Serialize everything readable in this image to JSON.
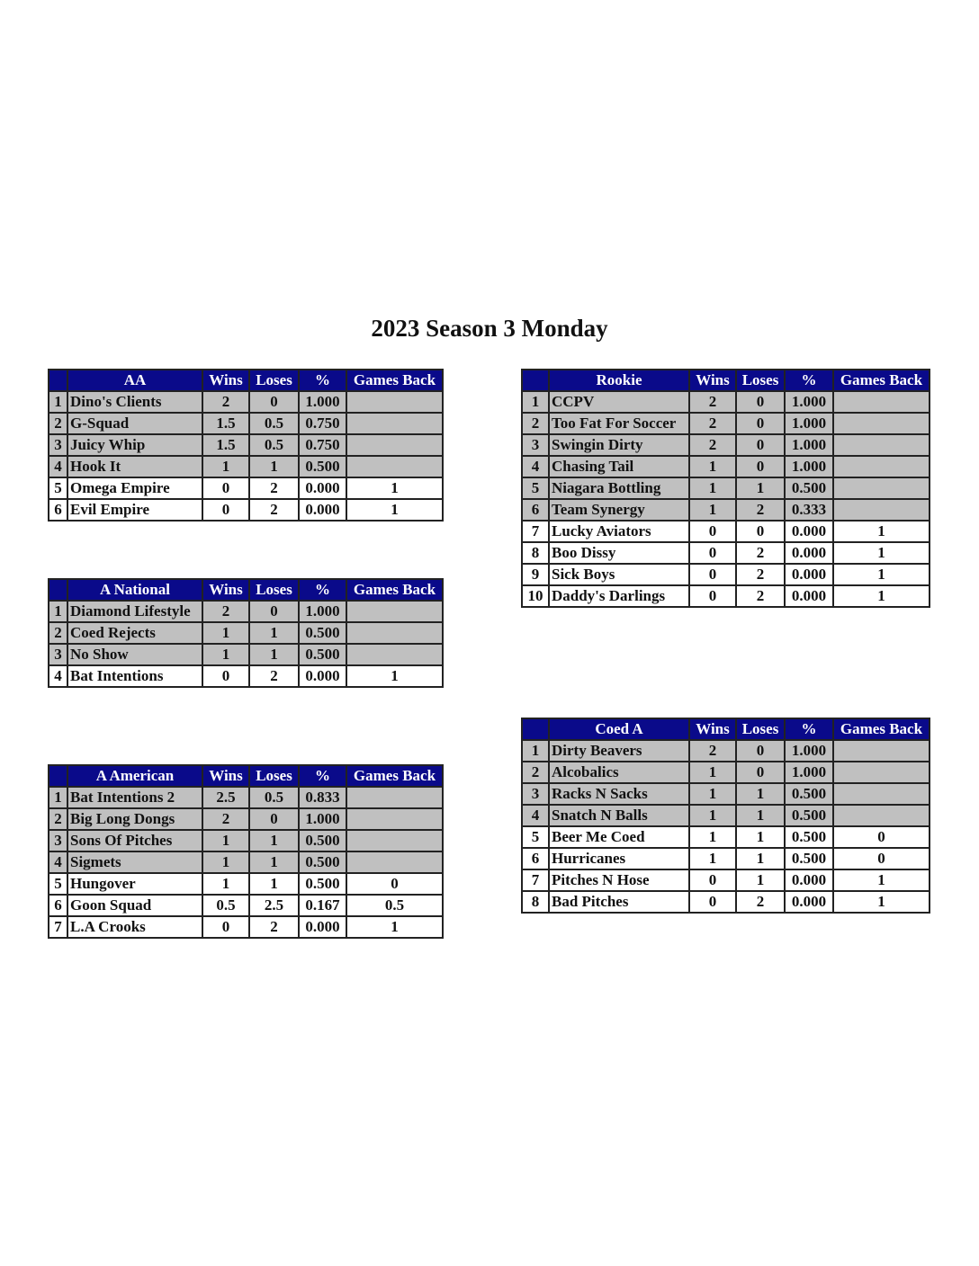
{
  "title": "2023 Season 3 Monday",
  "colors": {
    "header": "#0a0a8a",
    "qualified_row": "#c0c0c0",
    "other_row": "#ffffff"
  },
  "columns": [
    "Wins",
    "Loses",
    "%",
    "Games Back"
  ],
  "divisions": [
    {
      "id": "aa",
      "name": "AA",
      "rows": [
        {
          "rank": "1",
          "team": "Dino's Clients",
          "wins": "2",
          "loses": "0",
          "pct": "1.000",
          "gb": "",
          "shaded": true
        },
        {
          "rank": "2",
          "team": "G-Squad",
          "wins": "1.5",
          "loses": "0.5",
          "pct": "0.750",
          "gb": "",
          "shaded": true
        },
        {
          "rank": "3",
          "team": "Juicy Whip",
          "wins": "1.5",
          "loses": "0.5",
          "pct": "0.750",
          "gb": "",
          "shaded": true
        },
        {
          "rank": "4",
          "team": "Hook It",
          "wins": "1",
          "loses": "1",
          "pct": "0.500",
          "gb": "",
          "shaded": true
        },
        {
          "rank": "5",
          "team": "Omega Empire",
          "wins": "0",
          "loses": "2",
          "pct": "0.000",
          "gb": "1",
          "shaded": false
        },
        {
          "rank": "6",
          "team": "Evil Empire",
          "wins": "0",
          "loses": "2",
          "pct": "0.000",
          "gb": "1",
          "shaded": false
        }
      ]
    },
    {
      "id": "a-national",
      "name": "A National",
      "rows": [
        {
          "rank": "1",
          "team": "Diamond Lifestyle",
          "wins": "2",
          "loses": "0",
          "pct": "1.000",
          "gb": "",
          "shaded": true
        },
        {
          "rank": "2",
          "team": "Coed Rejects",
          "wins": "1",
          "loses": "1",
          "pct": "0.500",
          "gb": "",
          "shaded": true
        },
        {
          "rank": "3",
          "team": "No Show",
          "wins": "1",
          "loses": "1",
          "pct": "0.500",
          "gb": "",
          "shaded": true
        },
        {
          "rank": "4",
          "team": "Bat Intentions",
          "wins": "0",
          "loses": "2",
          "pct": "0.000",
          "gb": "1",
          "shaded": false
        }
      ]
    },
    {
      "id": "a-american",
      "name": "A American",
      "rows": [
        {
          "rank": "1",
          "team": "Bat Intentions 2",
          "wins": "2.5",
          "loses": "0.5",
          "pct": "0.833",
          "gb": "",
          "shaded": true
        },
        {
          "rank": "2",
          "team": "Big Long Dongs",
          "wins": "2",
          "loses": "0",
          "pct": "1.000",
          "gb": "",
          "shaded": true
        },
        {
          "rank": "3",
          "team": "Sons Of Pitches",
          "wins": "1",
          "loses": "1",
          "pct": "0.500",
          "gb": "",
          "shaded": true
        },
        {
          "rank": "4",
          "team": "Sigmets",
          "wins": "1",
          "loses": "1",
          "pct": "0.500",
          "gb": "",
          "shaded": true
        },
        {
          "rank": "5",
          "team": "Hungover",
          "wins": "1",
          "loses": "1",
          "pct": "0.500",
          "gb": "0",
          "shaded": false
        },
        {
          "rank": "6",
          "team": "Goon Squad",
          "wins": "0.5",
          "loses": "2.5",
          "pct": "0.167",
          "gb": "0.5",
          "shaded": false
        },
        {
          "rank": "7",
          "team": "L.A Crooks",
          "wins": "0",
          "loses": "2",
          "pct": "0.000",
          "gb": "1",
          "shaded": false
        }
      ]
    },
    {
      "id": "rookie",
      "name": "Rookie",
      "rows": [
        {
          "rank": "1",
          "team": "CCPV",
          "wins": "2",
          "loses": "0",
          "pct": "1.000",
          "gb": "",
          "shaded": true
        },
        {
          "rank": "2",
          "team": "Too Fat For Soccer",
          "wins": "2",
          "loses": "0",
          "pct": "1.000",
          "gb": "",
          "shaded": true
        },
        {
          "rank": "3",
          "team": "Swingin Dirty",
          "wins": "2",
          "loses": "0",
          "pct": "1.000",
          "gb": "",
          "shaded": true
        },
        {
          "rank": "4",
          "team": "Chasing Tail",
          "wins": "1",
          "loses": "0",
          "pct": "1.000",
          "gb": "",
          "shaded": true
        },
        {
          "rank": "5",
          "team": "Niagara Bottling",
          "wins": "1",
          "loses": "1",
          "pct": "0.500",
          "gb": "",
          "shaded": true
        },
        {
          "rank": "6",
          "team": "Team Synergy",
          "wins": "1",
          "loses": "2",
          "pct": "0.333",
          "gb": "",
          "shaded": true
        },
        {
          "rank": "7",
          "team": "Lucky Aviators",
          "wins": "0",
          "loses": "0",
          "pct": "0.000",
          "gb": "1",
          "shaded": false
        },
        {
          "rank": "8",
          "team": "Boo Dissy",
          "wins": "0",
          "loses": "2",
          "pct": "0.000",
          "gb": "1",
          "shaded": false
        },
        {
          "rank": "9",
          "team": "Sick Boys",
          "wins": "0",
          "loses": "2",
          "pct": "0.000",
          "gb": "1",
          "shaded": false
        },
        {
          "rank": "10",
          "team": "Daddy's Darlings",
          "wins": "0",
          "loses": "2",
          "pct": "0.000",
          "gb": "1",
          "shaded": false
        }
      ]
    },
    {
      "id": "coed-a",
      "name": "Coed A",
      "rows": [
        {
          "rank": "1",
          "team": "Dirty Beavers",
          "wins": "2",
          "loses": "0",
          "pct": "1.000",
          "gb": "",
          "shaded": true
        },
        {
          "rank": "2",
          "team": "Alcobalics",
          "wins": "1",
          "loses": "0",
          "pct": "1.000",
          "gb": "",
          "shaded": true
        },
        {
          "rank": "3",
          "team": "Racks N Sacks",
          "wins": "1",
          "loses": "1",
          "pct": "0.500",
          "gb": "",
          "shaded": true
        },
        {
          "rank": "4",
          "team": "Snatch N Balls",
          "wins": "1",
          "loses": "1",
          "pct": "0.500",
          "gb": "",
          "shaded": true
        },
        {
          "rank": "5",
          "team": "Beer Me Coed",
          "wins": "1",
          "loses": "1",
          "pct": "0.500",
          "gb": "0",
          "shaded": false
        },
        {
          "rank": "6",
          "team": "Hurricanes",
          "wins": "1",
          "loses": "1",
          "pct": "0.500",
          "gb": "0",
          "shaded": false
        },
        {
          "rank": "7",
          "team": "Pitches N Hose",
          "wins": "0",
          "loses": "1",
          "pct": "0.000",
          "gb": "1",
          "shaded": false
        },
        {
          "rank": "8",
          "team": "Bad Pitches",
          "wins": "0",
          "loses": "2",
          "pct": "0.000",
          "gb": "1",
          "shaded": false
        }
      ]
    }
  ]
}
